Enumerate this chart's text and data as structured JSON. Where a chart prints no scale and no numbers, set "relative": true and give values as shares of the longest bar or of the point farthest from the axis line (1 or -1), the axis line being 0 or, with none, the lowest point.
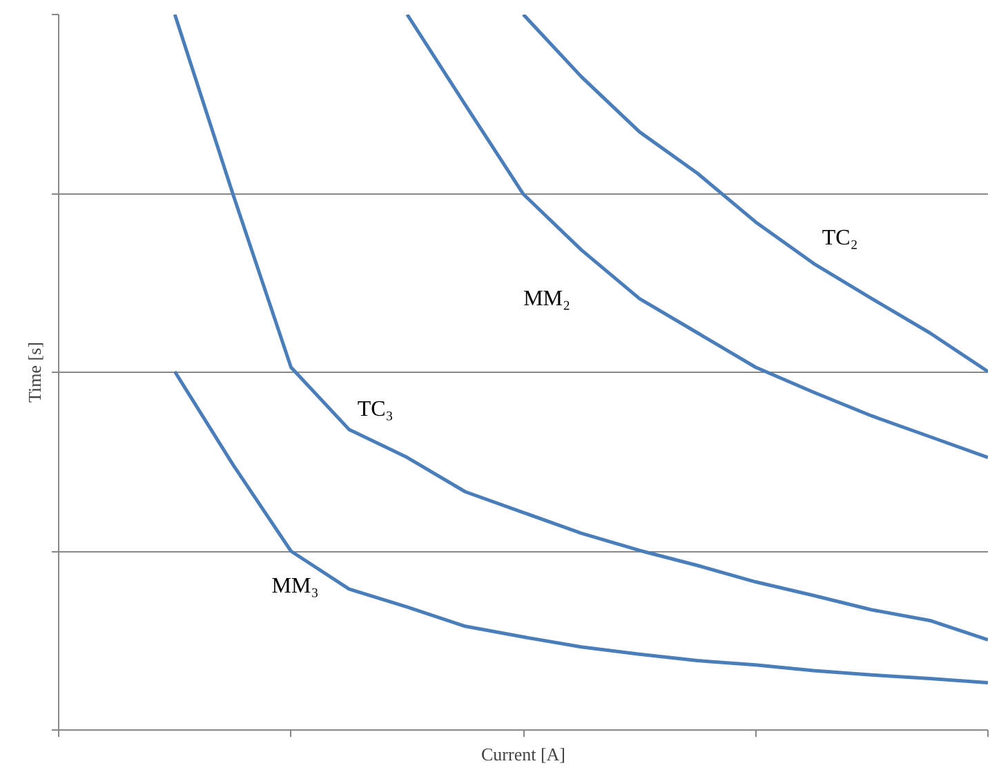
{
  "chart_data": {
    "type": "line",
    "xlabel": "Current [A]",
    "ylabel": "Time [s]",
    "relative": true,
    "grid": "y",
    "categories": [
      null,
      null,
      null,
      null,
      null,
      null,
      null,
      null,
      null,
      null,
      null,
      null,
      null,
      null,
      null,
      null,
      null
    ],
    "series": [
      {
        "name": "TC₂",
        "color": "#4a7ebb",
        "values": [
          null,
          null,
          null,
          null,
          null,
          null,
          null,
          null,
          1.0,
          0.913,
          0.836,
          0.778,
          0.71,
          0.652,
          0.603,
          0.555,
          0.501
        ]
      },
      {
        "name": "MM₂",
        "color": "#4a7ebb",
        "values": [
          null,
          null,
          null,
          null,
          null,
          null,
          1.0,
          0.874,
          0.749,
          0.671,
          0.603,
          0.555,
          0.507,
          0.472,
          0.439,
          0.41,
          0.381
        ]
      },
      {
        "name": "TC₃",
        "color": "#4a7ebb",
        "values": [
          null,
          null,
          1.0,
          0.749,
          0.507,
          0.42,
          0.381,
          0.333,
          0.304,
          0.275,
          0.251,
          0.23,
          0.207,
          0.188,
          0.168,
          0.153,
          0.126
        ]
      },
      {
        "name": "MM₃",
        "color": "#4a7ebb",
        "values": [
          null,
          null,
          0.501,
          0.371,
          0.25,
          0.197,
          0.172,
          0.145,
          0.13,
          0.116,
          0.106,
          0.097,
          0.091,
          0.083,
          0.077,
          0.072,
          0.066
        ]
      }
    ]
  }
}
